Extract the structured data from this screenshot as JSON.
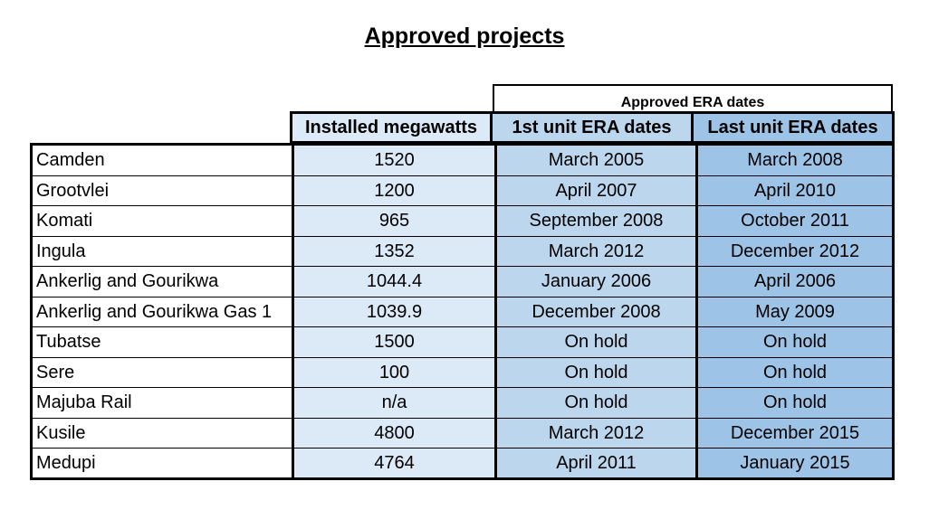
{
  "title": "Approved projects",
  "group_header": "Approved ERA dates",
  "columns": {
    "installed": "Installed megawatts",
    "first_unit": "1st unit ERA dates",
    "last_unit": "Last unit ERA dates"
  },
  "rows": [
    {
      "name": "Camden",
      "mw": "1520",
      "first": "March 2005",
      "last": "March 2008"
    },
    {
      "name": "Grootvlei",
      "mw": "1200",
      "first": "April 2007",
      "last": "April 2010"
    },
    {
      "name": "Komati",
      "mw": "965",
      "first": "September 2008",
      "last": "October 2011"
    },
    {
      "name": "Ingula",
      "mw": "1352",
      "first": "March 2012",
      "last": "December 2012"
    },
    {
      "name": "Ankerlig and Gourikwa",
      "mw": "1044.4",
      "first": "January 2006",
      "last": "April 2006"
    },
    {
      "name": "Ankerlig and Gourikwa Gas 1",
      "mw": "1039.9",
      "first": "December 2008",
      "last": "May 2009"
    },
    {
      "name": "Tubatse",
      "mw": "1500",
      "first": "On hold",
      "last": "On hold"
    },
    {
      "name": "Sere",
      "mw": "100",
      "first": "On hold",
      "last": "On hold"
    },
    {
      "name": "Majuba Rail",
      "mw": "n/a",
      "first": "On hold",
      "last": "On hold"
    },
    {
      "name": "Kusile",
      "mw": "4800",
      "first": "March 2012",
      "last": "December 2015"
    },
    {
      "name": "Medupi",
      "mw": "4764",
      "first": "April 2011",
      "last": "January 2015"
    }
  ]
}
